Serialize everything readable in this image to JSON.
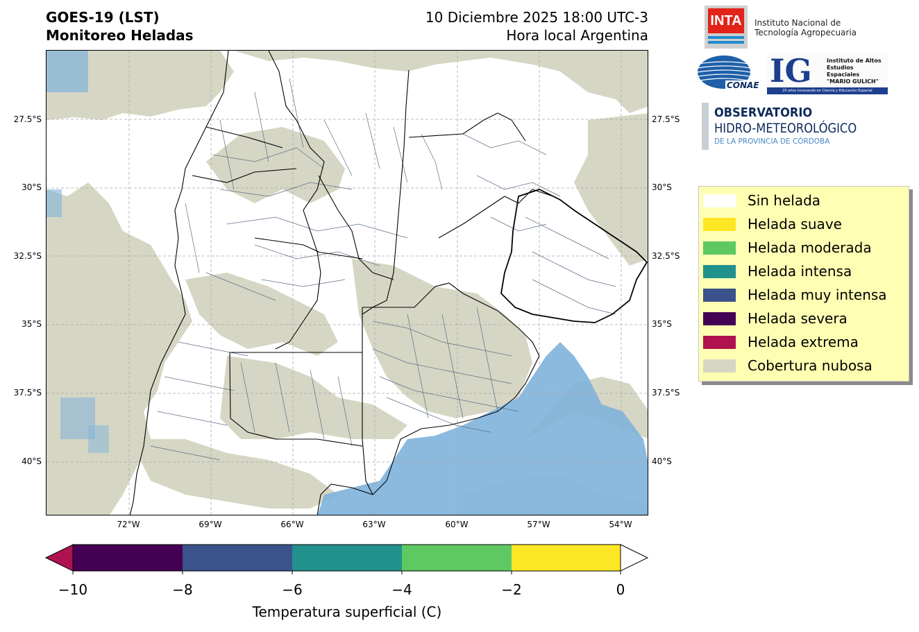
{
  "header": {
    "title_line1": "GOES-19 (LST)",
    "title_line2": "Monitoreo Heladas",
    "datetime": "10 Diciembre 2025 18:00 UTC-3",
    "timezone_label": "Hora local Argentina"
  },
  "map": {
    "lat_ticks": [
      "27.5°S",
      "30°S",
      "32.5°S",
      "35°S",
      "37.5°S",
      "40°S"
    ],
    "lon_ticks": [
      "72°W",
      "69°W",
      "66°W",
      "63°W",
      "60°W",
      "57°W",
      "54°W"
    ],
    "grid": true,
    "colors": {
      "sin_helada": "#ffffff",
      "cloud": "#d6d6c4",
      "ocean_cloud_free": "#7fb3db",
      "borders": "#000000",
      "departments": "#5a6e86"
    }
  },
  "legend": {
    "placement": "right",
    "items": [
      {
        "label": "Sin helada",
        "color": "#ffffff"
      },
      {
        "label": "Helada suave",
        "color": "#fde725"
      },
      {
        "label": "Helada moderada",
        "color": "#5ec962"
      },
      {
        "label": "Helada intensa",
        "color": "#21918c"
      },
      {
        "label": "Helada muy intensa",
        "color": "#3b528b"
      },
      {
        "label": "Helada severa",
        "color": "#440154"
      },
      {
        "label": "Helada extrema",
        "color": "#b0124f"
      },
      {
        "label": "Cobertura nubosa",
        "color": "#d6d6c4"
      }
    ]
  },
  "colorbar": {
    "ticks": [
      "−10",
      "−8",
      "−6",
      "−4",
      "−2",
      "0"
    ],
    "label": "Temperatura superficial (C)",
    "segments": [
      "#440154",
      "#3b528b",
      "#21918c",
      "#5ec962",
      "#fde725"
    ],
    "under_color": "#b0124f",
    "over_color": "#ffffff"
  },
  "logos": {
    "inta_mark": "INTA",
    "inta_name_1": "Instituto Nacional de",
    "inta_name_2": "Tecnología Agropecuaria",
    "conae": "CONAE",
    "ig_mark": "IG",
    "ig_name_1": "Instituto de Altos",
    "ig_name_2": "Estudios Espaciales",
    "ig_name_3": "\"MARIO GULICH\"",
    "ig_tagline": "20 años innovando en Ciencia y Educación Espacial",
    "obs_1": "OBSERVATORIO",
    "obs_2": "HIDRO-METEOROLÓGICO",
    "obs_3": "DE LA PROVINCIA DE CÓRDOBA"
  }
}
